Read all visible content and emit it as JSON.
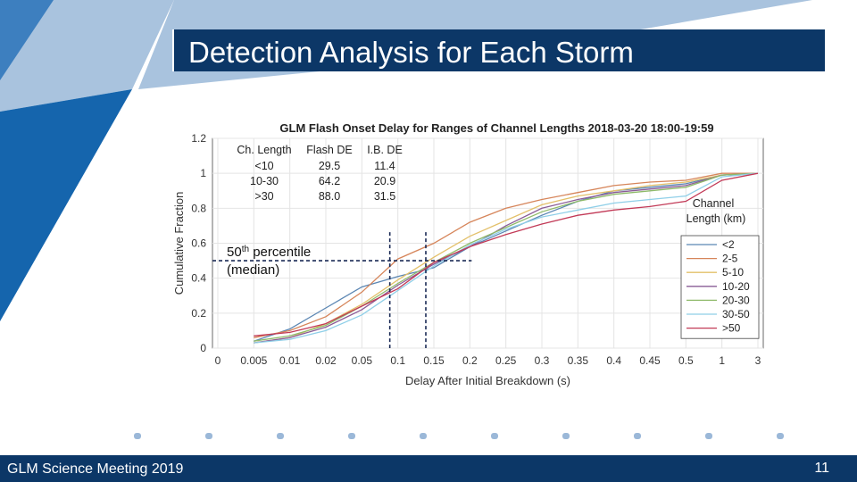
{
  "slide": {
    "title": "Detection Analysis for Each Storm",
    "footer_left": "GLM Science Meeting 2019",
    "page_number": "11",
    "colors": {
      "navy": "#0c3767",
      "light_blue": "#a9c3de",
      "mid_blue": "#3d7fbf",
      "blue": "#1565ad"
    }
  },
  "chart_data": {
    "type": "line",
    "title": "GLM Flash Onset Delay for Ranges of Channel Lengths 2018-03-20 18:00-19:59",
    "xlabel": "Delay After Initial Breakdown (s)",
    "ylabel": "Cumulative Fraction",
    "x": [
      "0",
      "0.005",
      "0.01",
      "0.02",
      "0.05",
      "0.1",
      "0.15",
      "0.2",
      "0.25",
      "0.3",
      "0.35",
      "0.4",
      "0.45",
      "0.5",
      "1",
      "3"
    ],
    "ylim": [
      0,
      1.2
    ],
    "yticks": [
      "0",
      "0.2",
      "0.4",
      "0.6",
      "0.8",
      "1",
      "1.2"
    ],
    "grid": true,
    "legend_title": "Channel Length (km)",
    "legend_placement": "right",
    "series": [
      {
        "name": "<2",
        "color": "#5b86b3",
        "values": [
          null,
          0.04,
          0.11,
          0.23,
          0.35,
          0.41,
          0.46,
          0.58,
          0.67,
          0.76,
          0.84,
          0.9,
          0.92,
          0.94,
          0.99,
          1.0
        ]
      },
      {
        "name": "2-5",
        "color": "#d6855a",
        "values": [
          null,
          0.06,
          0.1,
          0.18,
          0.32,
          0.51,
          0.6,
          0.72,
          0.8,
          0.85,
          0.89,
          0.93,
          0.95,
          0.96,
          1.0,
          1.0
        ]
      },
      {
        "name": "5-10",
        "color": "#e3c06a",
        "values": [
          null,
          0.03,
          0.06,
          0.14,
          0.25,
          0.39,
          0.52,
          0.64,
          0.73,
          0.82,
          0.87,
          0.9,
          0.93,
          0.95,
          0.99,
          1.0
        ]
      },
      {
        "name": "10-20",
        "color": "#8a5c96",
        "values": [
          null,
          0.03,
          0.06,
          0.12,
          0.22,
          0.36,
          0.48,
          0.58,
          0.7,
          0.8,
          0.85,
          0.89,
          0.91,
          0.93,
          0.99,
          1.0
        ]
      },
      {
        "name": "20-30",
        "color": "#8fba6a",
        "values": [
          null,
          0.04,
          0.07,
          0.13,
          0.24,
          0.37,
          0.49,
          0.6,
          0.69,
          0.78,
          0.84,
          0.88,
          0.9,
          0.92,
          0.99,
          1.0
        ]
      },
      {
        "name": "30-50",
        "color": "#8fcfe8",
        "values": [
          null,
          0.03,
          0.05,
          0.1,
          0.19,
          0.33,
          0.47,
          0.59,
          0.68,
          0.75,
          0.79,
          0.83,
          0.85,
          0.87,
          0.98,
          1.0
        ]
      },
      {
        "name": ">50",
        "color": "#c23a57",
        "values": [
          null,
          0.07,
          0.09,
          0.14,
          0.24,
          0.34,
          0.49,
          0.58,
          0.65,
          0.71,
          0.76,
          0.79,
          0.81,
          0.84,
          0.96,
          1.0
        ]
      }
    ],
    "table": {
      "headers": [
        "Ch. Length",
        "Flash DE",
        "I.B. DE"
      ],
      "rows": [
        [
          "<10",
          "29.5",
          "11.4"
        ],
        [
          "10-30",
          "64.2",
          "20.9"
        ],
        [
          ">30",
          "88.0",
          "31.5"
        ]
      ]
    },
    "annotation": {
      "line1": "50",
      "superscript": "th",
      "line1_rest": " percentile",
      "line2": "(median)",
      "y_value": 0.5,
      "x_markers": [
        "0.1",
        "0.15"
      ]
    }
  }
}
